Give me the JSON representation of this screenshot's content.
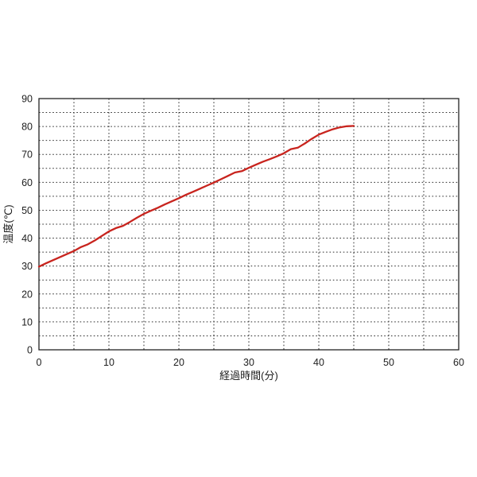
{
  "page": {
    "background_color": "#ffffff"
  },
  "chart_data": {
    "type": "line",
    "title": "",
    "xlabel": "経過時間(分)",
    "ylabel": "温度(℃)",
    "xlim": [
      0,
      60
    ],
    "ylim": [
      0,
      90
    ],
    "x_ticks": [
      0,
      10,
      20,
      30,
      40,
      50,
      60
    ],
    "y_ticks": [
      0,
      10,
      20,
      30,
      40,
      50,
      60,
      70,
      80,
      90
    ],
    "grid": {
      "on": true,
      "step_x": 5,
      "step_y": 5,
      "style": "dotted",
      "color": "#2e2e2e"
    },
    "border_color": "#222222",
    "legend": "none",
    "series": [
      {
        "name": "温度",
        "color": "#c8241e",
        "x": [
          0,
          1,
          2,
          3,
          4,
          5,
          6,
          7,
          8,
          9,
          10,
          11,
          12,
          13,
          14,
          15,
          16,
          17,
          18,
          19,
          20,
          21,
          22,
          23,
          24,
          25,
          26,
          27,
          28,
          29,
          30,
          31,
          32,
          33,
          34,
          35,
          36,
          37,
          38,
          39,
          40,
          41,
          42,
          43,
          44,
          45
        ],
        "y": [
          29.8,
          31.0,
          32.1,
          33.2,
          34.3,
          35.4,
          36.8,
          37.8,
          39.2,
          40.8,
          42.4,
          43.6,
          44.4,
          45.8,
          47.3,
          48.7,
          49.8,
          50.9,
          52.1,
          53.2,
          54.3,
          55.5,
          56.6,
          57.7,
          58.8,
          59.9,
          61.1,
          62.3,
          63.5,
          64.0,
          65.2,
          66.3,
          67.4,
          68.3,
          69.3,
          70.4,
          71.9,
          72.4,
          73.9,
          75.6,
          77.1,
          78.1,
          79.0,
          79.7,
          80.1,
          80.2
        ]
      }
    ]
  }
}
